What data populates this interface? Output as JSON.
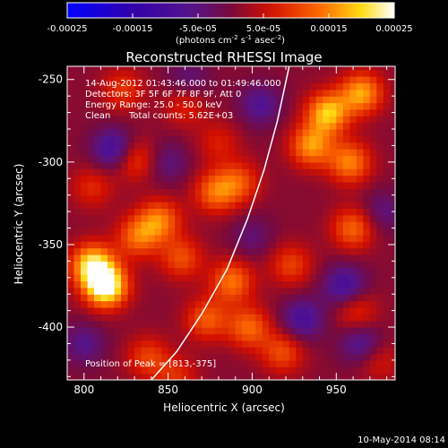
{
  "chart_data": {
    "type": "heatmap",
    "title": "Reconstructed RHESSI Image",
    "xlabel": "Heliocentric X (arcsec)",
    "ylabel": "Heliocentric Y (arcsec)",
    "xlim": [
      790,
      985
    ],
    "ylim": [
      -432,
      -242
    ],
    "x_ticks": [
      800,
      850,
      900,
      950
    ],
    "y_ticks": [
      -250,
      -300,
      -350,
      -400
    ],
    "colorbar": {
      "range": [
        -0.00025,
        0.00025
      ],
      "tick_values": [
        -0.00025,
        -0.00015,
        -5e-05,
        5e-05,
        0.00015,
        0.00025
      ],
      "tick_labels": [
        "-0.00025",
        "-0.00015",
        "-5.0e-05",
        "5.0e-05",
        "0.00015",
        "0.00025"
      ],
      "unit_base": "(photons cm",
      "unit_sup1": "-2",
      "unit_mid": " s",
      "unit_sup2": "-1",
      "unit_mid2": " asec",
      "unit_sup3": "-2",
      "unit_end": ")"
    },
    "annotations": {
      "time": "14-Aug-2012 01:43:46.000 to 01:49:46.000",
      "detectors": "Detectors: 3F 5F 6F 7F 8F 9F, Att 0",
      "energy": "Energy Range: 25.0 - 50.0 keV",
      "algorithm": "Clean",
      "counts": "Total counts: 5.62E+03",
      "peak": "Position of Peak = [813,-375]"
    },
    "limb_curve": [
      [
        840,
        -432
      ],
      [
        855,
        -415
      ],
      [
        870,
        -392
      ],
      [
        885,
        -365
      ],
      [
        897,
        -335
      ],
      [
        907,
        -305
      ],
      [
        915,
        -275
      ],
      [
        922,
        -242
      ]
    ],
    "peaks": [
      {
        "x": 813,
        "y": -375,
        "value": 0.00025
      },
      {
        "x": 805,
        "y": -362,
        "value": 0.0002
      },
      {
        "x": 945,
        "y": -270,
        "value": 0.00018
      },
      {
        "x": 965,
        "y": -258,
        "value": 0.00016
      },
      {
        "x": 935,
        "y": -290,
        "value": 0.00015
      },
      {
        "x": 958,
        "y": -300,
        "value": 0.00014
      },
      {
        "x": 960,
        "y": -340,
        "value": 0.00012
      },
      {
        "x": 845,
        "y": -335,
        "value": 0.00013
      },
      {
        "x": 830,
        "y": -298,
        "value": 0.0001
      },
      {
        "x": 832,
        "y": -345,
        "value": 0.00012
      },
      {
        "x": 878,
        "y": -318,
        "value": 0.00012
      },
      {
        "x": 892,
        "y": -312,
        "value": 0.0001
      },
      {
        "x": 888,
        "y": -372,
        "value": 0.00013
      },
      {
        "x": 898,
        "y": -400,
        "value": 0.00012
      },
      {
        "x": 873,
        "y": -395,
        "value": 0.00011
      },
      {
        "x": 858,
        "y": -358,
        "value": 0.0001
      },
      {
        "x": 838,
        "y": -418,
        "value": 9e-05
      },
      {
        "x": 923,
        "y": -362,
        "value": 9e-05
      },
      {
        "x": 918,
        "y": -415,
        "value": 0.0001
      },
      {
        "x": 962,
        "y": -390,
        "value": 8e-05
      },
      {
        "x": 823,
        "y": -256,
        "value": 8e-05
      },
      {
        "x": 805,
        "y": -315,
        "value": 7e-05
      },
      {
        "x": 860,
        "y": -265,
        "value": 7e-05
      },
      {
        "x": 880,
        "y": -288,
        "value": 6e-05
      },
      {
        "x": 975,
        "y": -420,
        "value": 6e-05
      },
      {
        "x": 855,
        "y": -430,
        "value": 7e-05
      }
    ],
    "troughs": [
      {
        "x": 818,
        "y": -292,
        "value": -0.00012
      },
      {
        "x": 955,
        "y": -375,
        "value": -0.00011
      },
      {
        "x": 930,
        "y": -395,
        "value": -0.0001
      },
      {
        "x": 905,
        "y": -265,
        "value": -8e-05
      },
      {
        "x": 965,
        "y": -410,
        "value": -9e-05
      },
      {
        "x": 800,
        "y": -410,
        "value": -7e-05
      },
      {
        "x": 850,
        "y": -300,
        "value": -6e-05
      },
      {
        "x": 862,
        "y": -250,
        "value": -6e-05
      },
      {
        "x": 900,
        "y": -345,
        "value": -5e-05
      },
      {
        "x": 978,
        "y": -330,
        "value": -6e-05
      }
    ],
    "background": 1e-05
  },
  "footer": {
    "date": "10-May-2014 08:14"
  }
}
